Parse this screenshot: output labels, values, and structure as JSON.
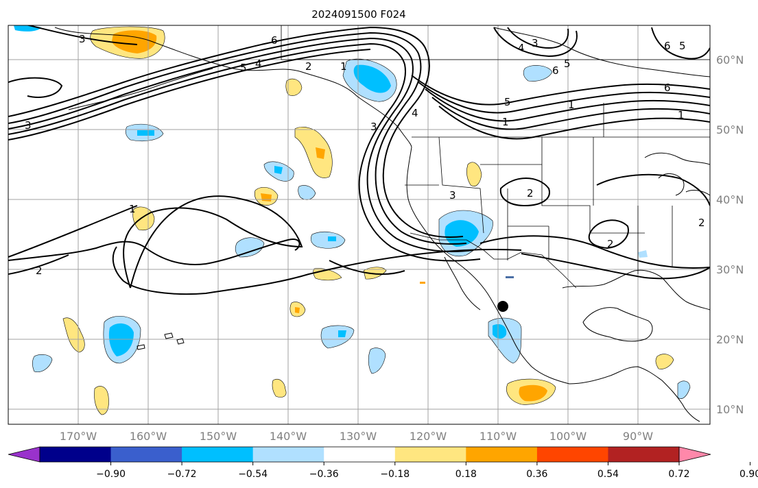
{
  "map": {
    "title": "2024091500 F024",
    "lat_labels": [
      "60°N",
      "50°N",
      "40°N",
      "30°N",
      "20°N",
      "10°N"
    ],
    "lon_labels": [
      "170°W",
      "160°W",
      "150°W",
      "140°W",
      "130°W",
      "120°W",
      "110°W",
      "100°W",
      "90°W"
    ],
    "contour_labels": [
      "6",
      "5",
      "4",
      "3",
      "2",
      "1",
      "1",
      "2",
      "3",
      "4",
      "5",
      "6",
      "3",
      "4",
      "5",
      "6",
      "1",
      "2",
      "3",
      "6",
      "5",
      "1",
      "2",
      "2",
      "3",
      "1"
    ],
    "marker": "storm-center-dot"
  },
  "colorbar": {
    "ticks": [
      "−0.90",
      "−0.72",
      "−0.54",
      "−0.36",
      "−0.18",
      "0.18",
      "0.36",
      "0.54",
      "0.72",
      "0.90"
    ],
    "colors": [
      "#9932cc",
      "#00008b",
      "#3a5fcd",
      "#00bfff",
      "#b0e0ff",
      "#ffffff",
      "#ffe680",
      "#ffa500",
      "#ff4500",
      "#b22222",
      "#ff88aa"
    ]
  }
}
